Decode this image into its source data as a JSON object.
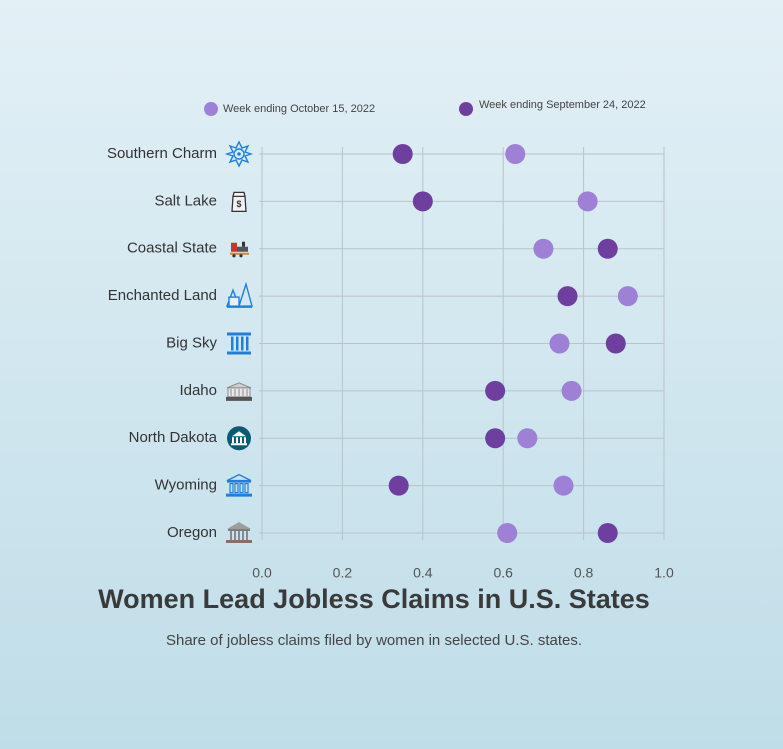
{
  "chart_data": {
    "type": "scatter",
    "title": "Women Lead Jobless Claims in U.S. States",
    "subtitle": "Share of jobless claims filed by women in selected U.S. states.",
    "categories": [
      "Southern Charm",
      "Salt Lake",
      "Coastal State",
      "Enchanted Land",
      "Big Sky",
      "Idaho",
      "North Dakota",
      "Wyoming",
      "Oregon"
    ],
    "icons": [
      "snowflake-badge-icon",
      "salt-shaker-icon",
      "train-icon",
      "forest-cabin-icon",
      "columns-icon",
      "capitol-building-icon",
      "north-dakota-building-icon",
      "wyoming-building-icon",
      "oregon-building-icon"
    ],
    "series": [
      {
        "name": "Week ending October 15, 2022",
        "color": "#9e80d6",
        "values": [
          0.63,
          0.81,
          0.7,
          0.91,
          0.74,
          0.77,
          0.66,
          0.75,
          0.61
        ]
      },
      {
        "name": "Week ending September 24, 2022",
        "color": "#6f3fa0",
        "values": [
          0.35,
          0.4,
          0.86,
          0.76,
          0.88,
          0.58,
          0.58,
          0.34,
          0.86
        ]
      }
    ],
    "xlim": [
      0,
      1
    ],
    "xticks": [
      "0.0",
      "0.2",
      "0.4",
      "0.6",
      "0.8",
      "1.0"
    ],
    "grid": true,
    "legend_position": "top"
  }
}
